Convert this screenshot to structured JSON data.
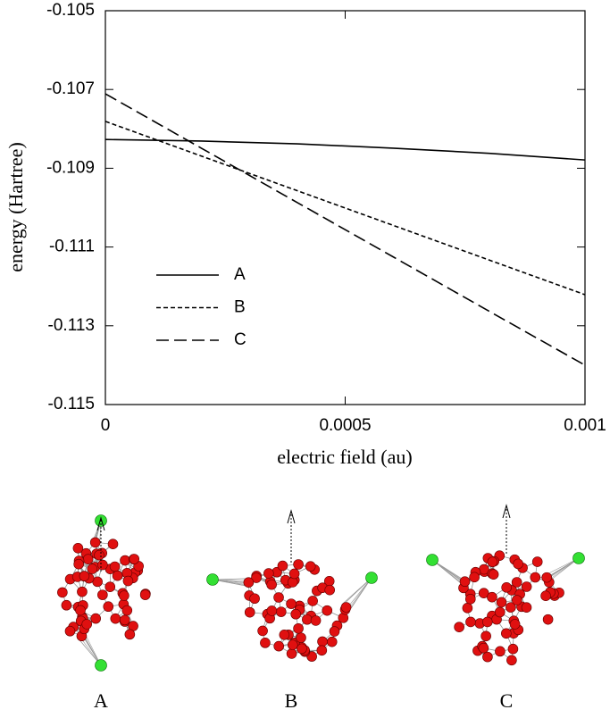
{
  "chart_data": {
    "type": "line",
    "xlabel": "electric field (au)",
    "ylabel": "energy (Hartree)",
    "x": [
      0,
      0.0002,
      0.0004,
      0.0006,
      0.0008,
      0.001
    ],
    "series": [
      {
        "name": "A",
        "color": "#000000",
        "dash": "solid",
        "values": [
          -0.10827,
          -0.10831,
          -0.10838,
          -0.10849,
          -0.10862,
          -0.10879
        ]
      },
      {
        "name": "B",
        "color": "#000000",
        "dash": "short",
        "values": [
          -0.10781,
          -0.10869,
          -0.10957,
          -0.11045,
          -0.11133,
          -0.11221
        ]
      },
      {
        "name": "C",
        "color": "#000000",
        "dash": "long",
        "values": [
          -0.10711,
          -0.10849,
          -0.10987,
          -0.11125,
          -0.11263,
          -0.114
        ]
      }
    ],
    "xlim": [
      0,
      0.001
    ],
    "xticks": [
      0,
      0.0005,
      0.001
    ],
    "ylim": [
      -0.115,
      -0.105
    ],
    "yticks": [
      -0.115,
      -0.113,
      -0.111,
      -0.109,
      -0.107,
      -0.105
    ],
    "legend": "lower-left"
  },
  "structures": {
    "labels": [
      "A",
      "B",
      "C"
    ]
  }
}
